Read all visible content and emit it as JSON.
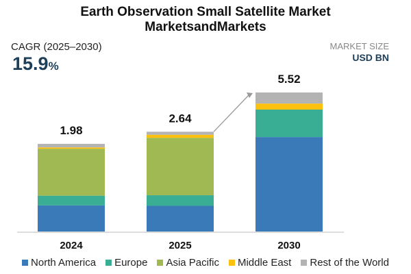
{
  "header": {
    "title": "Earth Observation Small Satellite Market",
    "subtitle": "MarketsandMarkets",
    "cagr_label": "CAGR (2025–2030)",
    "cagr_value": "15.9",
    "cagr_unit": "%",
    "market_size_label": "MARKET SIZE",
    "unit_label": "USD BN"
  },
  "chart_data": {
    "type": "bar",
    "stacked": true,
    "title": "Earth Observation Small Satellite Market",
    "ylabel": "USD BN",
    "categories": [
      "2024",
      "2025",
      "2030"
    ],
    "totals": [
      "1.98",
      "2.64",
      "5.52"
    ],
    "series": [
      {
        "name": "North America",
        "color": "#3a7ab8",
        "values": [
          0.59,
          0.68,
          3.75
        ]
      },
      {
        "name": "Europe",
        "color": "#3aae95",
        "values": [
          0.22,
          0.28,
          1.09
        ]
      },
      {
        "name": "Asia Pacific",
        "color": "#a1b952",
        "values": [
          1.06,
          1.52,
          0
        ]
      },
      {
        "name": "Middle East",
        "color": "#fcc10f",
        "values": [
          0.03,
          0.08,
          0.24
        ]
      },
      {
        "name": "Rest of the World",
        "color": "#b3b3b3",
        "values": [
          0.08,
          0.08,
          0.44
        ]
      }
    ],
    "legend_position": "bottom",
    "grid": false
  }
}
